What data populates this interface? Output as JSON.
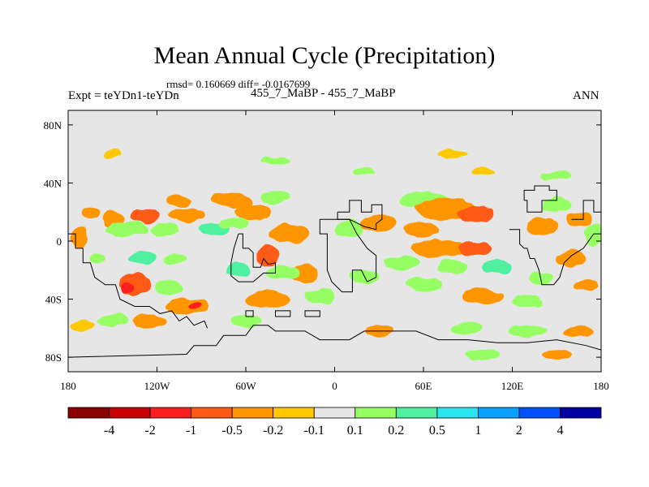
{
  "header": {
    "title": "Mean Annual Cycle (Precipitation)",
    "stats": "rmsd= 0.160669 diff= -0.0167699",
    "expt": "Expt = teYDn1-teYDn",
    "runs": "455_7_MaBP - 455_7_MaBP",
    "season": "ANN"
  },
  "chart_data": {
    "type": "heatmap",
    "title": "Mean Annual Cycle (Precipitation)",
    "subtitle": "rmsd= 0.160669 diff= -0.0167699",
    "xlabel": "",
    "ylabel": "",
    "xlim": [
      -180,
      180
    ],
    "ylim": [
      -90,
      90
    ],
    "x_ticks": [
      {
        "value": -180,
        "label": "180"
      },
      {
        "value": -120,
        "label": "120W"
      },
      {
        "value": -60,
        "label": "60W"
      },
      {
        "value": 0,
        "label": "0"
      },
      {
        "value": 60,
        "label": "60E"
      },
      {
        "value": 120,
        "label": "120E"
      },
      {
        "value": 180,
        "label": "180"
      }
    ],
    "y_ticks": [
      {
        "value": 80,
        "label": "80N"
      },
      {
        "value": 40,
        "label": "40N"
      },
      {
        "value": 0,
        "label": "0"
      },
      {
        "value": -40,
        "label": "40S"
      },
      {
        "value": -80,
        "label": "80S"
      }
    ],
    "colorbar": {
      "levels": [
        "-4",
        "-2",
        "-1",
        "-0.5",
        "-0.2",
        "-0.1",
        "0.1",
        "0.2",
        "0.5",
        "1",
        "2",
        "4"
      ],
      "colors": [
        "#8b0000",
        "#c80000",
        "#ff1e1e",
        "#ff5a14",
        "#ff9600",
        "#ffc800",
        "#e6e6e6",
        "#96ff64",
        "#50f0a0",
        "#28e6f0",
        "#0aa0ff",
        "#0050ff",
        "#0000a0"
      ]
    },
    "background_color": "#e6e6e6",
    "blobs": [
      {
        "lon": -150,
        "lat": 15,
        "rlon": 8,
        "rlat": 6,
        "cls": 4
      },
      {
        "lon": -128,
        "lat": 17,
        "rlon": 10,
        "rlat": 5,
        "cls": 3
      },
      {
        "lon": -105,
        "lat": 28,
        "rlon": 9,
        "rlat": 4,
        "cls": 4
      },
      {
        "lon": -100,
        "lat": 18,
        "rlon": 12,
        "rlat": 5,
        "cls": 4
      },
      {
        "lon": -140,
        "lat": 8,
        "rlon": 14,
        "rlat": 5,
        "cls": 7
      },
      {
        "lon": -115,
        "lat": 8,
        "rlon": 10,
        "rlat": 4,
        "cls": 7
      },
      {
        "lon": -172,
        "lat": 2,
        "rlon": 6,
        "rlat": 8,
        "cls": 4
      },
      {
        "lon": -165,
        "lat": 20,
        "rlon": 6,
        "rlat": 4,
        "cls": 4
      },
      {
        "lon": -160,
        "lat": -12,
        "rlon": 6,
        "rlat": 4,
        "cls": 7
      },
      {
        "lon": -130,
        "lat": -12,
        "rlon": 10,
        "rlat": 4,
        "cls": 8
      },
      {
        "lon": -108,
        "lat": -12,
        "rlon": 8,
        "rlat": 4,
        "cls": 7
      },
      {
        "lon": -135,
        "lat": -30,
        "rlon": 10,
        "rlat": 8,
        "cls": 3
      },
      {
        "lon": -140,
        "lat": -32,
        "rlon": 4,
        "rlat": 4,
        "cls": 2
      },
      {
        "lon": -112,
        "lat": -32,
        "rlon": 10,
        "rlat": 5,
        "cls": 7
      },
      {
        "lon": -100,
        "lat": -45,
        "rlon": 14,
        "rlat": 6,
        "cls": 4
      },
      {
        "lon": -95,
        "lat": -44,
        "rlon": 4,
        "rlat": 3,
        "cls": 2
      },
      {
        "lon": -170,
        "lat": -58,
        "rlon": 8,
        "rlat": 4,
        "cls": 5
      },
      {
        "lon": -150,
        "lat": -55,
        "rlon": 10,
        "rlat": 4,
        "cls": 7
      },
      {
        "lon": -125,
        "lat": -55,
        "rlon": 12,
        "rlat": 5,
        "cls": 4
      },
      {
        "lon": -70,
        "lat": 28,
        "rlon": 14,
        "rlat": 5,
        "cls": 4
      },
      {
        "lon": -55,
        "lat": 20,
        "rlon": 12,
        "rlat": 6,
        "cls": 4
      },
      {
        "lon": -40,
        "lat": 30,
        "rlon": 10,
        "rlat": 4,
        "cls": 7
      },
      {
        "lon": -82,
        "lat": 8,
        "rlon": 10,
        "rlat": 5,
        "cls": 8
      },
      {
        "lon": -68,
        "lat": 12,
        "rlon": 10,
        "rlat": 4,
        "cls": 7
      },
      {
        "lon": -45,
        "lat": -10,
        "rlon": 8,
        "rlat": 7,
        "cls": 3
      },
      {
        "lon": -30,
        "lat": 5,
        "rlon": 14,
        "rlat": 6,
        "cls": 4
      },
      {
        "lon": -20,
        "lat": -22,
        "rlon": 10,
        "rlat": 6,
        "cls": 4
      },
      {
        "lon": -35,
        "lat": -22,
        "rlon": 12,
        "rlat": 5,
        "cls": 7
      },
      {
        "lon": -65,
        "lat": -20,
        "rlon": 8,
        "rlat": 5,
        "cls": 8
      },
      {
        "lon": -45,
        "lat": -40,
        "rlon": 14,
        "rlat": 6,
        "cls": 4
      },
      {
        "lon": -10,
        "lat": -38,
        "rlon": 10,
        "rlat": 5,
        "cls": 7
      },
      {
        "lon": -60,
        "lat": -55,
        "rlon": 10,
        "rlat": 4,
        "cls": 7
      },
      {
        "lon": 10,
        "lat": 8,
        "rlon": 10,
        "rlat": 6,
        "cls": 7
      },
      {
        "lon": 30,
        "lat": 12,
        "rlon": 12,
        "rlat": 6,
        "cls": 4
      },
      {
        "lon": 20,
        "lat": -25,
        "rlon": 10,
        "rlat": 6,
        "cls": 7
      },
      {
        "lon": 45,
        "lat": -15,
        "rlon": 12,
        "rlat": 5,
        "cls": 7
      },
      {
        "lon": 60,
        "lat": 28,
        "rlon": 16,
        "rlat": 6,
        "cls": 7
      },
      {
        "lon": 75,
        "lat": 22,
        "rlon": 20,
        "rlat": 8,
        "cls": 4
      },
      {
        "lon": 95,
        "lat": 18,
        "rlon": 12,
        "rlat": 6,
        "cls": 3
      },
      {
        "lon": 58,
        "lat": 8,
        "rlon": 12,
        "rlat": 5,
        "cls": 4
      },
      {
        "lon": 70,
        "lat": -5,
        "rlon": 18,
        "rlat": 6,
        "cls": 4
      },
      {
        "lon": 95,
        "lat": -5,
        "rlon": 12,
        "rlat": 5,
        "cls": 3
      },
      {
        "lon": 80,
        "lat": -18,
        "rlon": 10,
        "rlat": 5,
        "cls": 7
      },
      {
        "lon": 110,
        "lat": -18,
        "rlon": 10,
        "rlat": 5,
        "cls": 8
      },
      {
        "lon": 60,
        "lat": -30,
        "rlon": 12,
        "rlat": 5,
        "cls": 7
      },
      {
        "lon": 100,
        "lat": -38,
        "rlon": 14,
        "rlat": 5,
        "cls": 4
      },
      {
        "lon": 130,
        "lat": -42,
        "rlon": 10,
        "rlat": 4,
        "cls": 7
      },
      {
        "lon": 140,
        "lat": 10,
        "rlon": 10,
        "rlat": 6,
        "cls": 4
      },
      {
        "lon": 150,
        "lat": 25,
        "rlon": 10,
        "rlat": 5,
        "cls": 7
      },
      {
        "lon": 165,
        "lat": 15,
        "rlon": 8,
        "rlat": 5,
        "cls": 4
      },
      {
        "lon": 160,
        "lat": -12,
        "rlon": 10,
        "rlat": 5,
        "cls": 4
      },
      {
        "lon": 175,
        "lat": 5,
        "rlon": 6,
        "rlat": 8,
        "cls": 7
      },
      {
        "lon": 140,
        "lat": -25,
        "rlon": 8,
        "rlat": 4,
        "cls": 7
      },
      {
        "lon": 170,
        "lat": -30,
        "rlon": 8,
        "rlat": 4,
        "cls": 4
      },
      {
        "lon": 150,
        "lat": 45,
        "rlon": 10,
        "rlat": 3,
        "cls": 7
      },
      {
        "lon": 100,
        "lat": 48,
        "rlon": 8,
        "rlat": 3,
        "cls": 5
      },
      {
        "lon": 20,
        "lat": 48,
        "rlon": 8,
        "rlat": 3,
        "cls": 7
      },
      {
        "lon": -40,
        "lat": 55,
        "rlon": 10,
        "rlat": 3,
        "cls": 7
      },
      {
        "lon": -150,
        "lat": 60,
        "rlon": 6,
        "rlat": 3,
        "cls": 5
      },
      {
        "lon": 80,
        "lat": 60,
        "rlon": 10,
        "rlat": 3,
        "cls": 5
      },
      {
        "lon": 30,
        "lat": -62,
        "rlon": 10,
        "rlat": 4,
        "cls": 4
      },
      {
        "lon": 90,
        "lat": -60,
        "rlon": 10,
        "rlat": 4,
        "cls": 7
      },
      {
        "lon": 130,
        "lat": -62,
        "rlon": 14,
        "rlat": 4,
        "cls": 7
      },
      {
        "lon": 165,
        "lat": -62,
        "rlon": 10,
        "rlat": 4,
        "cls": 4
      },
      {
        "lon": 100,
        "lat": -78,
        "rlon": 12,
        "rlat": 4,
        "cls": 7
      },
      {
        "lon": 150,
        "lat": -78,
        "rlon": 10,
        "rlat": 4,
        "cls": 4
      }
    ],
    "coastlines": [
      [
        [
          -180,
          5
        ],
        [
          -175,
          5
        ],
        [
          -175,
          -5
        ],
        [
          -170,
          -5
        ],
        [
          -170,
          -15
        ],
        [
          -165,
          -15
        ],
        [
          -162,
          -25
        ],
        [
          -155,
          -30
        ],
        [
          -148,
          -30
        ],
        [
          -145,
          -40
        ],
        [
          -135,
          -45
        ],
        [
          -125,
          -45
        ],
        [
          -118,
          -50
        ],
        [
          -110,
          -48
        ],
        [
          -105,
          -55
        ],
        [
          -100,
          -52
        ],
        [
          -95,
          -58
        ],
        [
          -88,
          -55
        ],
        [
          -86,
          -60
        ]
      ],
      [
        [
          -65,
          5
        ],
        [
          -62,
          5
        ],
        [
          -62,
          -5
        ],
        [
          -58,
          -5
        ],
        [
          -55,
          -8
        ],
        [
          -55,
          -18
        ],
        [
          -50,
          -18
        ],
        [
          -48,
          -12
        ],
        [
          -45,
          -16
        ],
        [
          -40,
          -15
        ],
        [
          -40,
          -22
        ],
        [
          -48,
          -22
        ],
        [
          -55,
          -28
        ],
        [
          -65,
          -28
        ],
        [
          -70,
          -24
        ],
        [
          -70,
          -15
        ],
        [
          -68,
          -5
        ],
        [
          -65,
          5
        ]
      ],
      [
        [
          -10,
          15
        ],
        [
          -10,
          5
        ],
        [
          -5,
          5
        ],
        [
          -5,
          -20
        ],
        [
          -2,
          -28
        ],
        [
          5,
          -35
        ],
        [
          12,
          -35
        ],
        [
          12,
          -20
        ],
        [
          18,
          -20
        ],
        [
          22,
          -28
        ],
        [
          28,
          -25
        ],
        [
          28,
          -10
        ],
        [
          22,
          -5
        ],
        [
          15,
          5
        ],
        [
          10,
          15
        ],
        [
          -10,
          15
        ]
      ],
      [
        [
          2,
          20
        ],
        [
          10,
          20
        ],
        [
          10,
          28
        ],
        [
          18,
          28
        ],
        [
          18,
          20
        ],
        [
          25,
          20
        ],
        [
          25,
          25
        ],
        [
          32,
          25
        ],
        [
          32,
          15
        ],
        [
          28,
          12
        ],
        [
          28,
          8
        ],
        [
          20,
          10
        ],
        [
          10,
          15
        ],
        [
          2,
          15
        ],
        [
          2,
          20
        ]
      ],
      [
        [
          118,
          8
        ],
        [
          125,
          8
        ],
        [
          125,
          -2
        ],
        [
          128,
          -5
        ],
        [
          130,
          -5
        ],
        [
          132,
          -12
        ],
        [
          135,
          -12
        ],
        [
          138,
          -20
        ],
        [
          140,
          -30
        ],
        [
          148,
          -30
        ],
        [
          152,
          -25
        ],
        [
          155,
          -15
        ],
        [
          160,
          -10
        ],
        [
          168,
          -5
        ],
        [
          175,
          5
        ],
        [
          180,
          5
        ]
      ],
      [
        [
          128,
          28
        ],
        [
          130,
          28
        ],
        [
          130,
          20
        ],
        [
          140,
          20
        ],
        [
          140,
          28
        ],
        [
          150,
          28
        ],
        [
          150,
          35
        ],
        [
          145,
          35
        ],
        [
          145,
          38
        ],
        [
          135,
          38
        ],
        [
          135,
          35
        ],
        [
          128,
          35
        ],
        [
          128,
          28
        ]
      ],
      [
        [
          160,
          15
        ],
        [
          168,
          15
        ],
        [
          168,
          28
        ],
        [
          175,
          28
        ],
        [
          175,
          20
        ],
        [
          180,
          20
        ]
      ],
      [
        [
          -180,
          -80
        ],
        [
          -100,
          -78
        ],
        [
          -95,
          -72
        ],
        [
          -80,
          -72
        ],
        [
          -75,
          -65
        ],
        [
          -60,
          -65
        ],
        [
          -55,
          -58
        ],
        [
          -45,
          -58
        ],
        [
          -40,
          -62
        ],
        [
          -20,
          -62
        ],
        [
          -10,
          -68
        ],
        [
          10,
          -68
        ],
        [
          20,
          -62
        ],
        [
          55,
          -62
        ],
        [
          70,
          -68
        ],
        [
          90,
          -68
        ],
        [
          110,
          -70
        ],
        [
          130,
          -70
        ],
        [
          150,
          -68
        ],
        [
          170,
          -72
        ],
        [
          180,
          -75
        ]
      ],
      [
        [
          -60,
          -52
        ],
        [
          -55,
          -52
        ],
        [
          -55,
          -48
        ],
        [
          -60,
          -48
        ],
        [
          -60,
          -52
        ]
      ],
      [
        [
          -40,
          -52
        ],
        [
          -30,
          -52
        ],
        [
          -30,
          -48
        ],
        [
          -40,
          -48
        ],
        [
          -40,
          -52
        ]
      ],
      [
        [
          -20,
          -52
        ],
        [
          -10,
          -52
        ],
        [
          -10,
          -48
        ],
        [
          -20,
          -48
        ],
        [
          -20,
          -52
        ]
      ]
    ]
  }
}
